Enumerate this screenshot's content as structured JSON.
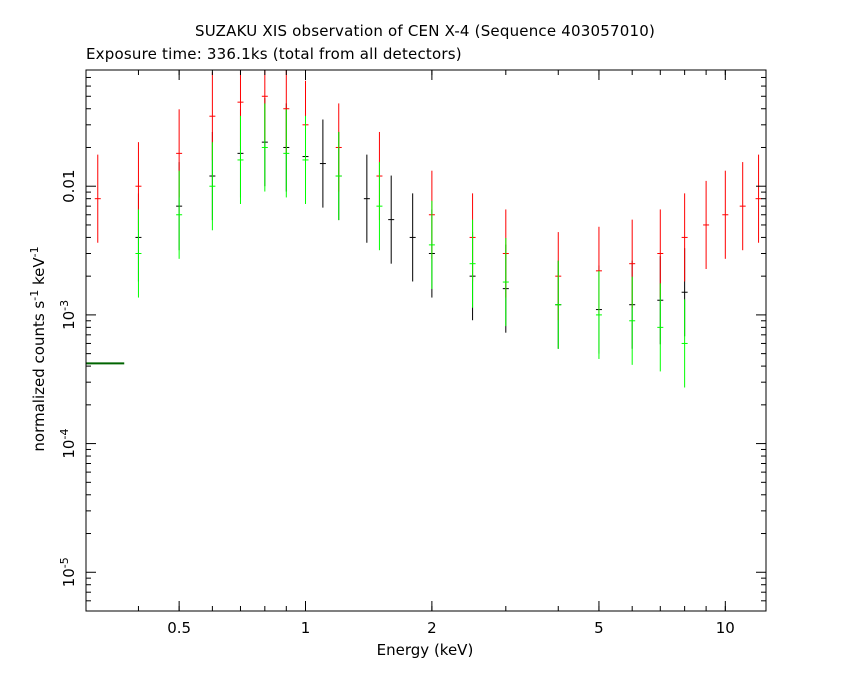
{
  "chart_data": {
    "type": "scatter",
    "title": "SUZAKU XIS observation of CEN X-4 (Sequence 403057010)",
    "subtitle": "Exposure time: 336.1ks (total from all detectors)",
    "xlabel": "Energy (keV)",
    "ylabel": {
      "prefix": "normalized counts s",
      "s_exp": "-1",
      "mid": " keV",
      "kev_exp": "-1"
    },
    "x_scale": "log",
    "y_scale": "log",
    "xlim": [
      0.3,
      12.5
    ],
    "ylim": [
      5e-06,
      0.08
    ],
    "x_ticks": [
      {
        "value": 0.5,
        "label": "0.5"
      },
      {
        "value": 1,
        "label": "1"
      },
      {
        "value": 2,
        "label": "2"
      },
      {
        "value": 5,
        "label": "5"
      },
      {
        "value": 10,
        "label": "10"
      }
    ],
    "y_ticks": [
      {
        "value": 1e-05,
        "base": "10",
        "exp": "-5",
        "label": ""
      },
      {
        "value": 0.0001,
        "base": "10",
        "exp": "-4",
        "label": ""
      },
      {
        "value": 0.001,
        "base": "10",
        "exp": "-3",
        "label": ""
      },
      {
        "value": 0.01,
        "base": "",
        "exp": "",
        "label": "0.01"
      }
    ],
    "series": [
      {
        "color": "#000000",
        "x": [
          0.4,
          0.5,
          0.6,
          0.7,
          0.8,
          0.9,
          1.0,
          1.1,
          1.2,
          1.4,
          1.6,
          1.8,
          2.0,
          2.5,
          3.0,
          4.0,
          5.0,
          6.0,
          7.0,
          8.0
        ],
        "y": [
          0.004,
          0.007,
          0.012,
          0.018,
          0.022,
          0.02,
          0.017,
          0.015,
          0.012,
          0.008,
          0.0055,
          0.004,
          0.003,
          0.002,
          0.0016,
          0.0012,
          0.0011,
          0.0012,
          0.0013,
          0.0015
        ]
      },
      {
        "color": "#ff0000",
        "x": [
          0.32,
          0.4,
          0.5,
          0.6,
          0.7,
          0.8,
          0.9,
          1.0,
          1.2,
          1.5,
          2.0,
          2.5,
          3.0,
          4.0,
          5.0,
          6.0,
          7.0,
          8.0,
          9.0,
          10.0,
          11.0,
          12.0
        ],
        "y": [
          0.008,
          0.01,
          0.018,
          0.035,
          0.045,
          0.05,
          0.04,
          0.03,
          0.02,
          0.012,
          0.006,
          0.004,
          0.003,
          0.002,
          0.0022,
          0.0025,
          0.003,
          0.004,
          0.005,
          0.006,
          0.007,
          0.008
        ]
      },
      {
        "color": "#00ff00",
        "x": [
          0.4,
          0.5,
          0.6,
          0.7,
          0.8,
          0.9,
          1.0,
          1.2,
          1.5,
          2.0,
          2.5,
          3.0,
          4.0,
          5.0,
          6.0,
          7.0,
          8.0
        ],
        "y": [
          0.003,
          0.006,
          0.01,
          0.016,
          0.02,
          0.018,
          0.016,
          0.012,
          0.007,
          0.0035,
          0.0025,
          0.0018,
          0.0012,
          0.001,
          0.0009,
          0.0008,
          0.0006
        ]
      }
    ],
    "low_energy_bin": {
      "color": "#006400",
      "x": [
        0.3,
        0.37
      ],
      "y": 0.00042
    },
    "colors": {
      "black": "#000000",
      "red": "#ff0000",
      "green": "#00ff00",
      "dark_green": "#006400"
    },
    "grid": false
  }
}
